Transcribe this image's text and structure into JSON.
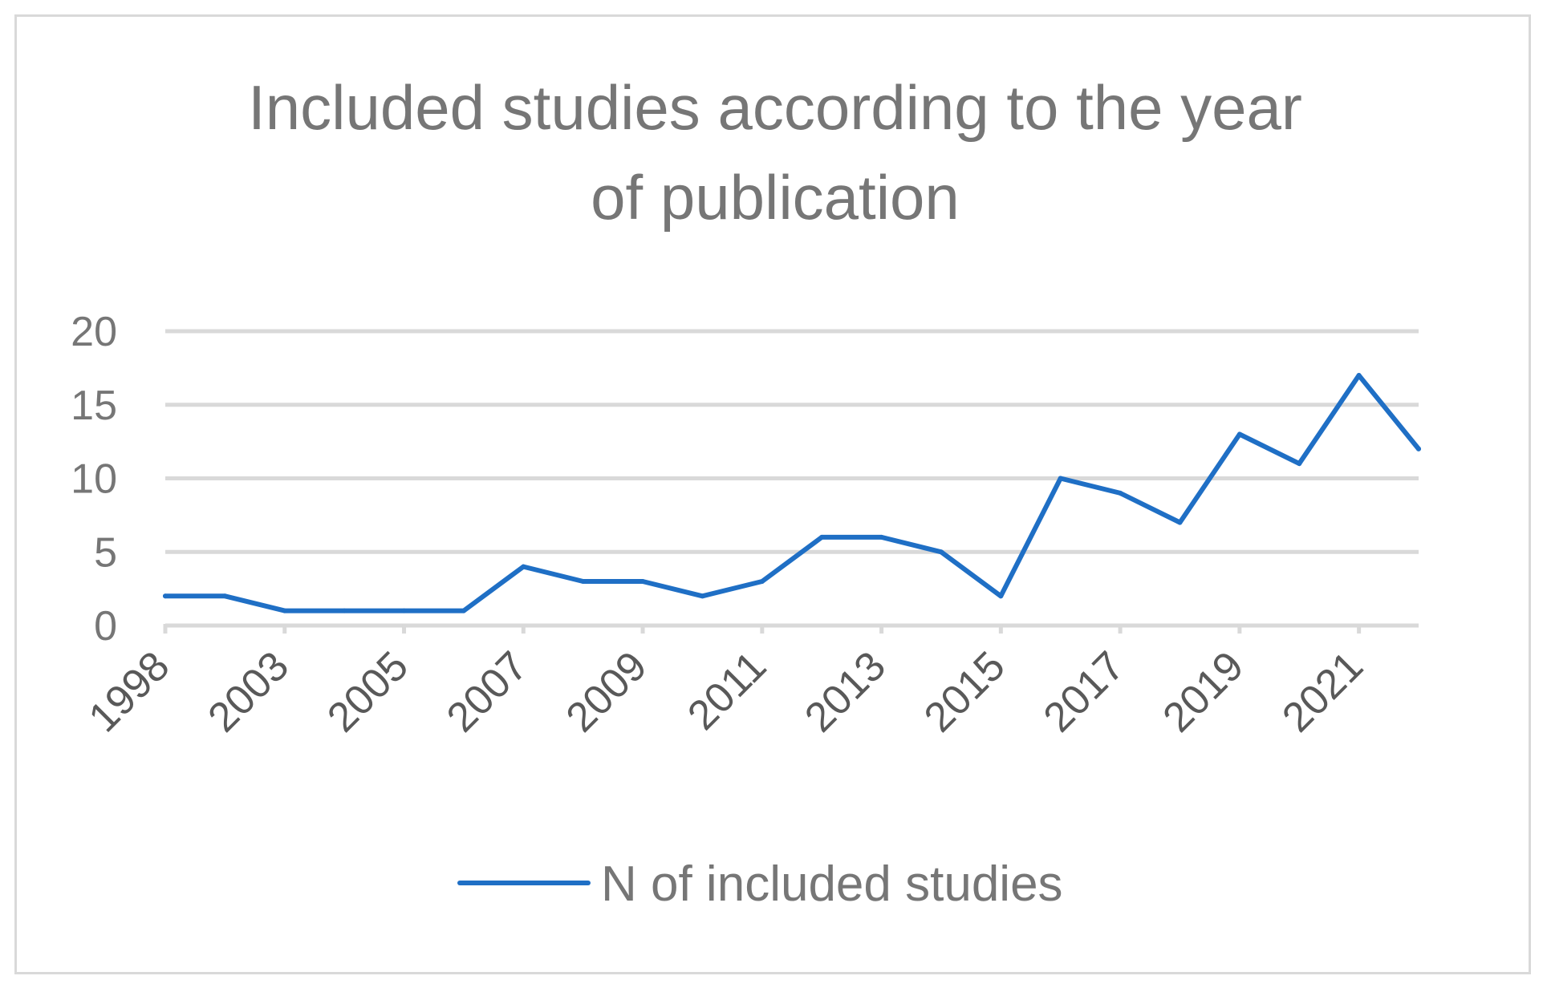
{
  "chart_data": {
    "type": "line",
    "title_lines": [
      "Included studies according to the year",
      "of publication"
    ],
    "x": [
      "1998",
      "",
      "2003",
      "",
      "2005",
      "",
      "2007",
      "",
      "2009",
      "",
      "2011",
      "",
      "2013",
      "",
      "2015",
      "",
      "2017",
      "",
      "2019",
      "",
      "2021",
      ""
    ],
    "x_tick_labels": [
      "1998",
      "2003",
      "2005",
      "2007",
      "2009",
      "2011",
      "2013",
      "2015",
      "2017",
      "2019",
      "2021"
    ],
    "series": [
      {
        "name": "N of included studies",
        "values": [
          2,
          2,
          1,
          1,
          1,
          1,
          4,
          3,
          3,
          2,
          3,
          6,
          6,
          5,
          2,
          10,
          9,
          7,
          13,
          11,
          17,
          12
        ]
      }
    ],
    "y_ticks": [
      "0",
      "5",
      "10",
      "15",
      "20"
    ],
    "ylim": [
      0,
      20
    ],
    "grid": true,
    "legend_position": "bottom",
    "colors": {
      "series": "#1f6fc5",
      "grid": "#d9d9d9",
      "text": "#767676"
    }
  }
}
